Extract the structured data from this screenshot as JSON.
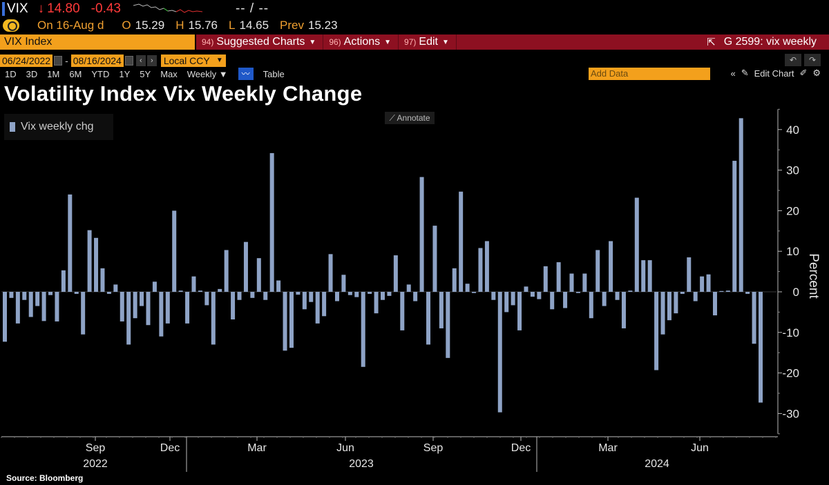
{
  "header": {
    "ticker": "VIX",
    "arrow": "↓",
    "last": "14.80",
    "change": "-0.43",
    "bid_ask": "-- / --",
    "date_label": "On 16-Aug d",
    "open_label": "O",
    "open": "15.29",
    "high_label": "H",
    "high": "15.76",
    "low_label": "L",
    "low": "14.65",
    "prev_label": "Prev",
    "prev": "15.23",
    "security": "VIX Index",
    "menus": [
      {
        "num": "94)",
        "label": "Suggested Charts"
      },
      {
        "num": "96)",
        "label": "Actions"
      },
      {
        "num": "97)",
        "label": "Edit"
      }
    ],
    "graph_name": "G 2599: vix weekly"
  },
  "toolbar": {
    "start_date": "06/24/2022",
    "end_date": "08/16/2024",
    "currency": "Local CCY",
    "periods": [
      "1D",
      "3D",
      "1M",
      "6M",
      "YTD",
      "1Y",
      "5Y",
      "Max"
    ],
    "frequency": "Weekly ▼",
    "table_label": "Table",
    "add_data_placeholder": "Add Data",
    "edit_chart": "Edit Chart",
    "annotate": "Annotate"
  },
  "colors": {
    "bar": "#8ea3c6",
    "accent_orange": "#f3a01c",
    "accent_red": "#8d1021",
    "down": "#ff3a3a"
  },
  "source": "Source: Bloomberg",
  "chart_data": {
    "type": "bar",
    "title": "Volatility Index Vix Weekly Change",
    "ylabel": "Percent",
    "legend": "Vix weekly chg",
    "legend_position": "top-left",
    "ylim": [
      -35,
      45
    ],
    "yticks": [
      -30,
      -20,
      -10,
      0,
      10,
      20,
      30,
      40
    ],
    "month_ticks": [
      "Sep",
      "Dec",
      "Mar",
      "Jun",
      "Sep",
      "Dec",
      "Mar",
      "Jun"
    ],
    "year_labels": [
      "2022",
      "2023",
      "2024"
    ],
    "series": [
      {
        "name": "Vix weekly chg",
        "values": [
          -12.3,
          -1.5,
          -7.8,
          -2,
          -6.2,
          -3.5,
          -7.2,
          -0.8,
          -7.3,
          5.3,
          24,
          -0.5,
          -10.5,
          15.2,
          13.3,
          5.8,
          -0.5,
          1.8,
          -7.3,
          -13,
          -6.5,
          -3.5,
          -8.2,
          2.5,
          -11,
          -7.8,
          20,
          0.3,
          -7.8,
          3.8,
          0.3,
          -3.3,
          -13,
          0.7,
          10.3,
          -6.8,
          -2,
          12.3,
          -1.5,
          8.3,
          -2,
          34.2,
          2.8,
          -14.5,
          -13.8,
          -0.7,
          -4.3,
          -2.5,
          -7.8,
          -6,
          9.3,
          -2.3,
          4.2,
          -0.8,
          -1.3,
          -18.5,
          -0.5,
          -5.3,
          -2,
          -1,
          9,
          -9.5,
          1.8,
          -2.3,
          28.3,
          -13,
          16.3,
          -9,
          -16.3,
          5.8,
          24.7,
          2,
          -0.3,
          10.8,
          12.5,
          -2,
          -29.7,
          -5,
          -3.3,
          -9.5,
          1.3,
          -1.2,
          -1.8,
          6.3,
          -4.3,
          7.3,
          -4,
          4.5,
          -0.3,
          4.5,
          -6.5,
          10.3,
          -3.5,
          12.5,
          -2,
          -9,
          0.3,
          23.2,
          7.8,
          7.8,
          -19.3,
          -10.5,
          -7,
          -5.3,
          -0.5,
          8.5,
          -2.3,
          3.8,
          4.3,
          -5.8,
          0.2,
          0.3,
          32.3,
          42.8,
          -0.5,
          -12.8,
          -27.3
        ]
      }
    ]
  }
}
